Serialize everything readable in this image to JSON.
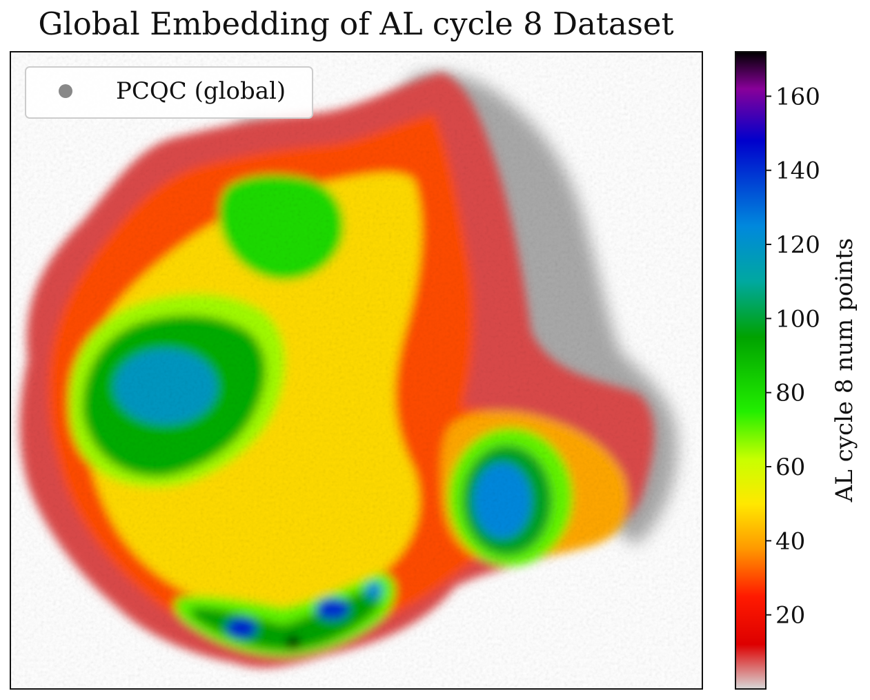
{
  "chart_data": {
    "type": "heatmap",
    "title": "Global Embedding of AL cycle 8 Dataset",
    "xlabel": "",
    "ylabel": "",
    "axis_ticks_shown": false,
    "grid": false,
    "legend": {
      "placement": "top-left",
      "entries": [
        {
          "label": "PCQC (global)",
          "marker": "circle",
          "color": "#888888"
        }
      ]
    },
    "background_scatter": {
      "name": "PCQC (global)",
      "color": "#8a8a8a",
      "alpha": "low"
    },
    "colorbar": {
      "label": "AL cycle 8 num points",
      "range": [
        0,
        172
      ],
      "ticks": [
        20,
        40,
        60,
        80,
        100,
        120,
        140,
        160
      ],
      "colormap": "nipy_spectral_r",
      "stops": [
        {
          "value": 0,
          "color": "#d8d8d8"
        },
        {
          "value": 12,
          "color": "#dd0000"
        },
        {
          "value": 25,
          "color": "#ff1a00"
        },
        {
          "value": 38,
          "color": "#ff9a00"
        },
        {
          "value": 50,
          "color": "#ffe800"
        },
        {
          "value": 62,
          "color": "#c8ff00"
        },
        {
          "value": 75,
          "color": "#22ee00"
        },
        {
          "value": 95,
          "color": "#00a200"
        },
        {
          "value": 110,
          "color": "#00a8a0"
        },
        {
          "value": 125,
          "color": "#0088dd"
        },
        {
          "value": 148,
          "color": "#0000cc"
        },
        {
          "value": 162,
          "color": "#880099"
        },
        {
          "value": 172,
          "color": "#000000"
        }
      ]
    },
    "density_regions": [
      {
        "name": "overall-occupied-region",
        "level": 8
      },
      {
        "name": "main-body",
        "level": 30
      },
      {
        "name": "core-body",
        "level": 48
      },
      {
        "name": "right-lobe-body",
        "level": 40
      },
      {
        "name": "left-cluster-halo",
        "level": 65
      },
      {
        "name": "left-cluster",
        "level": 92
      },
      {
        "name": "left-cluster-core",
        "level": 118
      },
      {
        "name": "upper-cluster",
        "level": 80
      },
      {
        "name": "right-lobe-cluster-halo",
        "level": 70
      },
      {
        "name": "right-lobe-cluster",
        "level": 98
      },
      {
        "name": "right-lobe-core",
        "level": 125
      },
      {
        "name": "bottom-arc-halo",
        "level": 70
      },
      {
        "name": "bottom-arc",
        "level": 95
      },
      {
        "name": "bottom-spot-left",
        "level": 142
      },
      {
        "name": "bottom-spot-middle",
        "level": 140
      },
      {
        "name": "bottom-spot-right",
        "level": 125
      },
      {
        "name": "bottom-peak",
        "level": 172
      }
    ]
  }
}
